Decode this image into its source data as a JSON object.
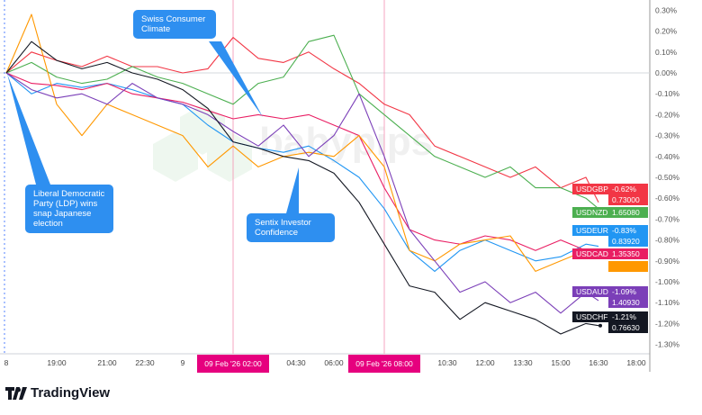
{
  "chart_data": {
    "type": "line",
    "x": [
      "17:00",
      "18:00",
      "19:00",
      "20:00",
      "21:00",
      "22:00",
      "23:00",
      "00:00",
      "01:00",
      "02:00",
      "03:00",
      "04:00",
      "05:00",
      "06:00",
      "07:00",
      "08:00",
      "09:00",
      "10:00",
      "11:00",
      "12:00",
      "13:00",
      "14:00",
      "15:00",
      "16:00",
      "16:30"
    ],
    "y_ticks": [
      "0.30%",
      "0.20%",
      "0.10%",
      "0.00%",
      "-0.10%",
      "-0.20%",
      "-0.30%",
      "-0.40%",
      "-0.50%",
      "-0.60%",
      "-0.70%",
      "-0.80%",
      "-0.90%",
      "-1.00%",
      "-1.10%",
      "-1.20%",
      "-1.30%"
    ],
    "y_tick_values": [
      0.3,
      0.2,
      0.1,
      0,
      -0.1,
      -0.2,
      -0.3,
      -0.4,
      -0.5,
      -0.6,
      -0.7,
      -0.8,
      -0.9,
      -1.0,
      -1.1,
      -1.2,
      -1.3
    ],
    "x_ticks": [
      {
        "label": "8",
        "time": "17:00",
        "day": 0
      },
      {
        "label": "19:00",
        "time": "19:00",
        "day": 0
      },
      {
        "label": "21:00",
        "time": "21:00",
        "day": 0
      },
      {
        "label": "22:30",
        "time": "22:30",
        "day": 0
      },
      {
        "label": "9",
        "time": "00:00",
        "day": 1
      },
      {
        "label": "04:30",
        "time": "04:30",
        "day": 1
      },
      {
        "label": "06:00",
        "time": "06:00",
        "day": 1
      },
      {
        "label": "10:30",
        "time": "10:30",
        "day": 1
      },
      {
        "label": "12:00",
        "time": "12:00",
        "day": 1
      },
      {
        "label": "13:30",
        "time": "13:30",
        "day": 1
      },
      {
        "label": "15:00",
        "time": "15:00",
        "day": 1
      },
      {
        "label": "16:30",
        "time": "16:30",
        "day": 1
      },
      {
        "label": "18:00",
        "time": "18:00",
        "day": 1
      }
    ],
    "highlighted_times": [
      {
        "label": "09 Feb '26   02:00",
        "time": "02:00",
        "day": 1
      },
      {
        "label": "09 Feb '26   08:00",
        "time": "08:00",
        "day": 1
      }
    ],
    "ylim": [
      -1.35,
      0.33
    ],
    "y_unit": "%",
    "grid": false,
    "zero_line": true,
    "series": [
      {
        "name": "USDGBP",
        "color": "#f23645",
        "change": "-0.62%",
        "price": "0.73000",
        "values": [
          0,
          0.1,
          0.06,
          0.03,
          0.08,
          0.03,
          0.03,
          0.0,
          0.02,
          0.17,
          0.07,
          0.05,
          0.1,
          0.02,
          -0.05,
          -0.15,
          -0.2,
          -0.35,
          -0.4,
          -0.45,
          -0.5,
          -0.45,
          -0.55,
          -0.5,
          -0.62
        ]
      },
      {
        "name": "USDNZD",
        "color": "#4caf50",
        "price": "1.65080",
        "values": [
          0,
          0.05,
          -0.02,
          -0.05,
          -0.03,
          0.03,
          -0.02,
          -0.05,
          -0.1,
          -0.15,
          -0.05,
          -0.02,
          0.15,
          0.18,
          -0.1,
          -0.2,
          -0.3,
          -0.4,
          -0.45,
          -0.5,
          -0.45,
          -0.55,
          -0.55,
          -0.6,
          -0.65
        ]
      },
      {
        "name": "USDEUR",
        "color": "#2196f3",
        "change": "-0.83%",
        "price": "0.83920",
        "values": [
          0,
          -0.1,
          -0.05,
          -0.07,
          -0.05,
          -0.08,
          -0.12,
          -0.15,
          -0.25,
          -0.33,
          -0.36,
          -0.38,
          -0.35,
          -0.42,
          -0.5,
          -0.65,
          -0.85,
          -0.95,
          -0.85,
          -0.8,
          -0.85,
          -0.9,
          -0.88,
          -0.82,
          -0.83
        ]
      },
      {
        "name": "USDCAD",
        "color": "#e91e63",
        "price": "1.35350",
        "values": [
          0,
          -0.05,
          -0.06,
          -0.08,
          -0.05,
          -0.1,
          -0.12,
          -0.14,
          -0.18,
          -0.22,
          -0.2,
          -0.22,
          -0.2,
          -0.25,
          -0.3,
          -0.55,
          -0.75,
          -0.8,
          -0.82,
          -0.78,
          -0.8,
          -0.85,
          -0.8,
          -0.85,
          -0.86
        ]
      },
      {
        "color": "#ff9800",
        "values": [
          0,
          0.28,
          -0.15,
          -0.3,
          -0.15,
          -0.2,
          -0.25,
          -0.3,
          -0.45,
          -0.35,
          -0.45,
          -0.4,
          -0.38,
          -0.4,
          -0.3,
          -0.45,
          -0.85,
          -0.9,
          -0.82,
          -0.8,
          -0.78,
          -0.95,
          -0.9,
          -0.85,
          -0.85
        ]
      },
      {
        "name": "USDAUD",
        "color": "#7b3fb8",
        "change": "-1.09%",
        "price": "1.40930",
        "values": [
          0,
          -0.08,
          -0.12,
          -0.1,
          -0.15,
          -0.05,
          -0.12,
          -0.15,
          -0.2,
          -0.28,
          -0.35,
          -0.25,
          -0.4,
          -0.3,
          -0.1,
          -0.4,
          -0.75,
          -0.9,
          -1.05,
          -1.0,
          -1.1,
          -1.05,
          -1.15,
          -1.05,
          -1.09
        ]
      },
      {
        "name": "USDCHF",
        "color": "#131722",
        "change": "-1.21%",
        "price": "0.76630",
        "values": [
          0,
          0.15,
          0.06,
          0.02,
          0.05,
          0.0,
          -0.03,
          -0.08,
          -0.17,
          -0.33,
          -0.36,
          -0.4,
          -0.42,
          -0.48,
          -0.62,
          -0.82,
          -1.02,
          -1.05,
          -1.18,
          -1.1,
          -1.14,
          -1.18,
          -1.25,
          -1.2,
          -1.21
        ]
      }
    ],
    "annotations": [
      {
        "text": "Liberal Democratic Party (LDP) wins snap Japanese election"
      },
      {
        "text": "Swiss Consumer Climate"
      },
      {
        "text": "Sentix Investor Confidence"
      }
    ]
  },
  "watermark": "babypips",
  "brand": "TradingView"
}
